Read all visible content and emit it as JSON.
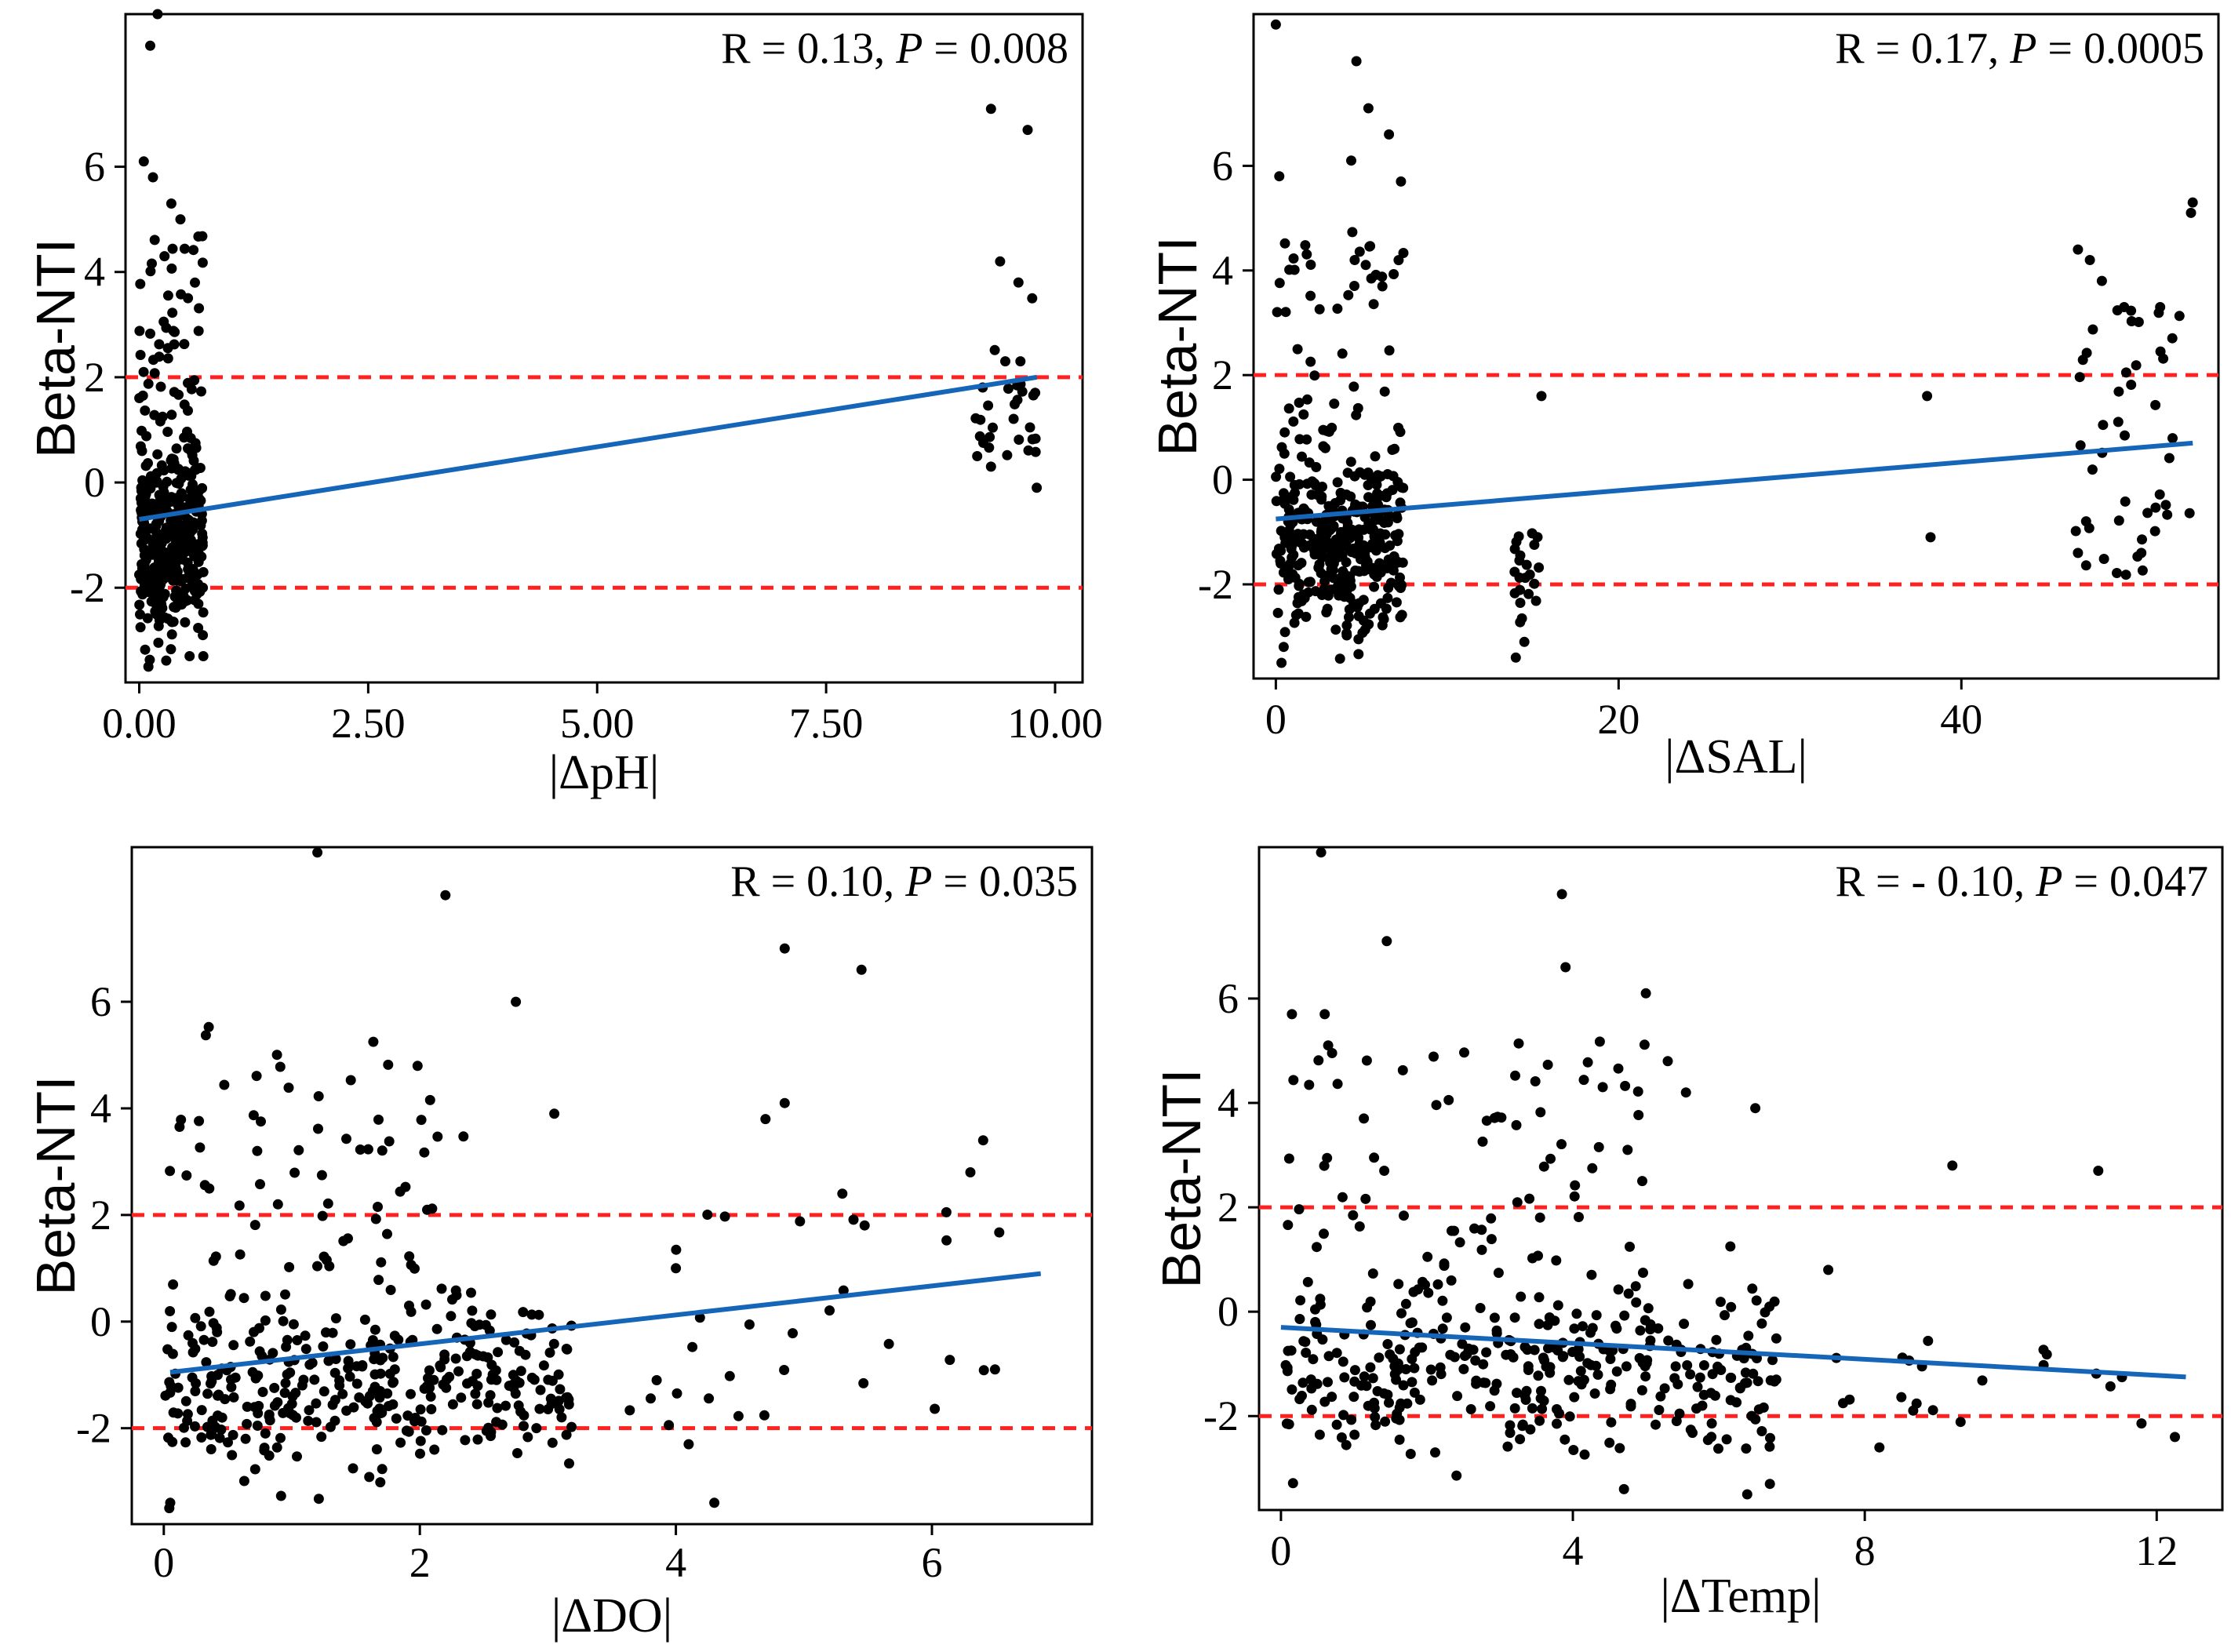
{
  "colors": {
    "points": "#000000",
    "fit_line": "#1565b8",
    "threshold": "#ff2020",
    "frame": "#000000"
  },
  "chart_data": [
    {
      "type": "scatter",
      "id": "ph",
      "ylabel": "Beta-NTI",
      "xlabel": "|ΔpH|",
      "annotation": {
        "r_text": "R = 0.13,",
        "p_label": "P",
        "p_text": " = 0.008"
      },
      "xlim": [
        -0.15,
        10.3
      ],
      "ylim": [
        -3.8,
        8.9
      ],
      "xticks": [
        0,
        2.5,
        5,
        7.5,
        10
      ],
      "xtick_labels": [
        "0.00",
        "2.50",
        "5.00",
        "7.50",
        "10.00"
      ],
      "yticks": [
        -2,
        0,
        2,
        4,
        6
      ],
      "ytick_labels": [
        "-2",
        "0",
        "2",
        "4",
        "6"
      ],
      "thresholds": [
        2,
        -2
      ],
      "fit_line": {
        "x": [
          0,
          9.8
        ],
        "y": [
          -0.7,
          2.0
        ]
      },
      "highlight_points": [
        [
          0.05,
          6.1
        ],
        [
          0.12,
          8.3
        ],
        [
          0.2,
          8.9
        ],
        [
          0.15,
          5.8
        ],
        [
          0.35,
          5.3
        ],
        [
          0.45,
          5.0
        ],
        [
          0.55,
          -3.3
        ],
        [
          0.7,
          -3.3
        ],
        [
          0.1,
          -3.5
        ],
        [
          9.3,
          7.1
        ],
        [
          9.7,
          6.7
        ],
        [
          9.4,
          4.2
        ],
        [
          9.3,
          0.3
        ],
        [
          9.8,
          -0.1
        ],
        [
          9.15,
          0.5
        ],
        [
          9.6,
          3.8
        ],
        [
          9.75,
          3.5
        ]
      ],
      "clusters": [
        {
          "x_range": [
            0.0,
            0.7
          ],
          "count": 380,
          "y_mean": -1.1,
          "y_sd": 0.9,
          "seed": 11
        },
        {
          "x_range": [
            0.0,
            0.7
          ],
          "count": 55,
          "y_uniform": [
            0.5,
            4.8
          ],
          "seed": 12
        },
        {
          "x_range": [
            9.1,
            9.8
          ],
          "count": 28,
          "y_uniform": [
            0.5,
            2.6
          ],
          "seed": 13
        }
      ]
    },
    {
      "type": "scatter",
      "id": "sal",
      "ylabel": "Beta-NTI",
      "xlabel": "|ΔSAL|",
      "annotation": {
        "r_text": "R = 0.17,",
        "p_label": "P",
        "p_text": " = 0.0005"
      },
      "xlim": [
        -1.3,
        55.0
      ],
      "ylim": [
        -3.8,
        8.9
      ],
      "xticks": [
        0,
        20,
        40
      ],
      "xtick_labels": [
        "0",
        "20",
        "40"
      ],
      "yticks": [
        -2,
        0,
        2,
        4,
        6
      ],
      "ytick_labels": [
        "-2",
        "0",
        "2",
        "4",
        "6"
      ],
      "thresholds": [
        2,
        -2
      ],
      "fit_line": {
        "x": [
          0,
          53.5
        ],
        "y": [
          -0.75,
          0.7
        ]
      },
      "highlight_points": [
        [
          0.0,
          8.7
        ],
        [
          4.7,
          8.0
        ],
        [
          5.4,
          7.1
        ],
        [
          6.6,
          6.6
        ],
        [
          4.4,
          6.1
        ],
        [
          7.3,
          5.7
        ],
        [
          0.2,
          5.8
        ],
        [
          4.6,
          4.2
        ],
        [
          14.0,
          -3.4
        ],
        [
          14.5,
          -3.1
        ],
        [
          15.5,
          1.6
        ],
        [
          38.0,
          1.6
        ],
        [
          38.2,
          -1.1
        ],
        [
          46.8,
          4.4
        ],
        [
          47.5,
          4.2
        ],
        [
          48.2,
          3.8
        ],
        [
          49.5,
          3.3
        ],
        [
          51.6,
          3.3
        ],
        [
          53.5,
          5.3
        ],
        [
          53.4,
          5.1
        ],
        [
          50.5,
          -1.4
        ],
        [
          46.8,
          -1.4
        ]
      ],
      "clusters": [
        {
          "x_range": [
            0.0,
            7.5
          ],
          "count": 360,
          "y_mean": -1.2,
          "y_sd": 0.85,
          "seed": 21
        },
        {
          "x_range": [
            0.0,
            7.5
          ],
          "count": 50,
          "y_uniform": [
            0.3,
            4.8
          ],
          "seed": 22
        },
        {
          "x_range": [
            13.8,
            15.6
          ],
          "count": 22,
          "y_uniform": [
            -2.8,
            -0.9
          ],
          "seed": 23
        },
        {
          "x_range": [
            46.5,
            53.5
          ],
          "count": 45,
          "y_uniform": [
            -1.9,
            3.4
          ],
          "seed": 24
        }
      ]
    },
    {
      "type": "scatter",
      "id": "do",
      "ylabel": "Beta-NTI",
      "xlabel": "|ΔDO|",
      "annotation": {
        "r_text": "R = 0.10,",
        "p_label": "P",
        "p_text": " = 0.035"
      },
      "xlim": [
        -0.25,
        7.25
      ],
      "ylim": [
        -3.8,
        8.9
      ],
      "xticks": [
        0,
        2,
        4,
        6
      ],
      "xtick_labels": [
        "0",
        "2",
        "4",
        "6"
      ],
      "yticks": [
        -2,
        0,
        2,
        4,
        6
      ],
      "ytick_labels": [
        "-2",
        "0",
        "2",
        "4",
        "6"
      ],
      "thresholds": [
        2,
        -2
      ],
      "fit_line": {
        "x": [
          0.05,
          6.85
        ],
        "y": [
          -0.95,
          0.9
        ]
      },
      "highlight_points": [
        [
          1.2,
          8.8
        ],
        [
          2.2,
          8.0
        ],
        [
          2.75,
          6.0
        ],
        [
          4.85,
          7.0
        ],
        [
          5.45,
          6.6
        ],
        [
          4.7,
          3.8
        ],
        [
          4.85,
          4.1
        ],
        [
          6.4,
          3.4
        ],
        [
          6.3,
          2.8
        ],
        [
          5.3,
          2.4
        ],
        [
          4.3,
          -3.4
        ],
        [
          0.05,
          -3.4
        ],
        [
          3.05,
          3.9
        ],
        [
          3.85,
          -1.1
        ],
        [
          4.0,
          1.0
        ],
        [
          4.1,
          -2.3
        ]
      ],
      "clusters": [
        {
          "x_range": [
            0.0,
            3.2
          ],
          "count": 350,
          "y_mean": -1.2,
          "y_sd": 0.8,
          "seed": 31
        },
        {
          "x_range": [
            0.0,
            2.4
          ],
          "count": 70,
          "y_uniform": [
            0.3,
            5.6
          ],
          "seed": 32
        },
        {
          "x_range": [
            3.6,
            6.9
          ],
          "count": 30,
          "y_uniform": [
            -2.3,
            2.4
          ],
          "seed": 33
        }
      ]
    },
    {
      "type": "scatter",
      "id": "temp",
      "ylabel": "Beta-NTI",
      "xlabel": "|ΔTemp|",
      "annotation": {
        "r_text": "R = - 0.10,",
        "p_label": "P",
        "p_text": " = 0.047"
      },
      "xlim": [
        -0.3,
        12.9
      ],
      "ylim": [
        -3.8,
        8.9
      ],
      "xticks": [
        0,
        4,
        8,
        12
      ],
      "xtick_labels": [
        "0",
        "4",
        "8",
        "12"
      ],
      "yticks": [
        -2,
        0,
        2,
        4,
        6
      ],
      "ytick_labels": [
        "-2",
        "0",
        "2",
        "4",
        "6"
      ],
      "thresholds": [
        2,
        -2
      ],
      "fit_line": {
        "x": [
          0.0,
          12.4
        ],
        "y": [
          -0.3,
          -1.25
        ]
      },
      "highlight_points": [
        [
          0.55,
          8.8
        ],
        [
          3.85,
          8.0
        ],
        [
          1.45,
          7.1
        ],
        [
          3.9,
          6.6
        ],
        [
          5.0,
          6.1
        ],
        [
          0.15,
          5.7
        ],
        [
          0.6,
          5.7
        ],
        [
          5.3,
          4.8
        ],
        [
          5.55,
          4.2
        ],
        [
          6.5,
          3.9
        ],
        [
          9.2,
          2.8
        ],
        [
          11.2,
          2.7
        ],
        [
          7.5,
          0.8
        ],
        [
          4.7,
          -3.4
        ],
        [
          6.7,
          -3.3
        ],
        [
          12.25,
          -2.4
        ],
        [
          8.2,
          -2.6
        ]
      ],
      "clusters": [
        {
          "x_range": [
            0.0,
            6.8
          ],
          "count": 340,
          "y_mean": -1.15,
          "y_sd": 0.85,
          "seed": 41
        },
        {
          "x_range": [
            0.0,
            5.0
          ],
          "count": 80,
          "y_uniform": [
            0.3,
            5.2
          ],
          "seed": 42
        },
        {
          "x_range": [
            7.4,
            12.4
          ],
          "count": 20,
          "y_uniform": [
            -2.2,
            -0.5
          ],
          "seed": 43
        }
      ]
    }
  ]
}
